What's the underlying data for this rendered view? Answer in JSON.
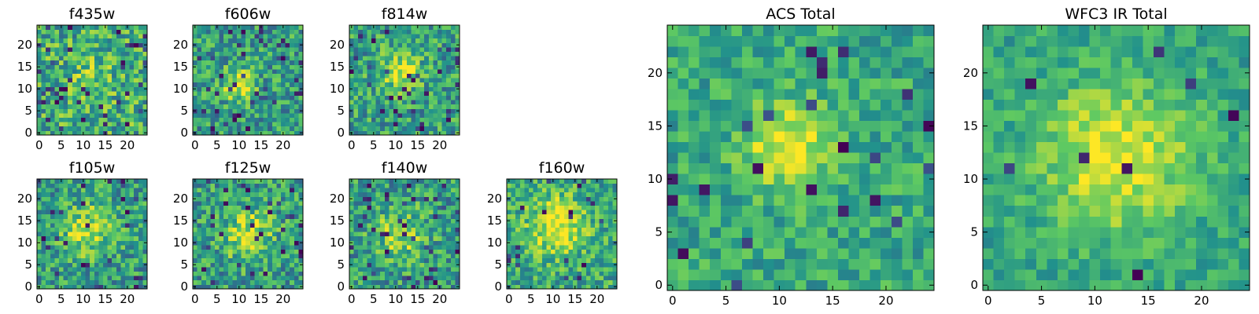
{
  "figure": {
    "colormap": "viridis",
    "colormap_stops": [
      "#440154",
      "#3b528b",
      "#21918c",
      "#5ec962",
      "#fde725"
    ],
    "background": "#ffffff"
  },
  "chart_data": [
    {
      "type": "heatmap",
      "title": "f435w",
      "grid_size": 25,
      "x_ticks": [
        "0",
        "5",
        "10",
        "15",
        "20"
      ],
      "y_ticks": [
        "0",
        "5",
        "10",
        "15",
        "20"
      ],
      "xlim": [
        0,
        25
      ],
      "ylim": [
        0,
        25
      ],
      "seed": 11,
      "noise": 0.55,
      "peak": 0.12,
      "center": [
        12,
        12
      ],
      "sigma": 4.0,
      "base": 0.62,
      "dark_fraction": 0.07
    },
    {
      "type": "heatmap",
      "title": "f606w",
      "grid_size": 25,
      "x_ticks": [
        "0",
        "5",
        "10",
        "15",
        "20"
      ],
      "y_ticks": [
        "0",
        "5",
        "10",
        "15",
        "20"
      ],
      "xlim": [
        0,
        25
      ],
      "ylim": [
        0,
        25
      ],
      "seed": 23,
      "noise": 0.5,
      "peak": 0.45,
      "center": [
        10,
        11
      ],
      "sigma": 2.5,
      "base": 0.55,
      "dark_fraction": 0.06
    },
    {
      "type": "heatmap",
      "title": "f814w",
      "grid_size": 25,
      "x_ticks": [
        "0",
        "5",
        "10",
        "15",
        "20"
      ],
      "y_ticks": [
        "0",
        "5",
        "10",
        "15",
        "20"
      ],
      "xlim": [
        0,
        25
      ],
      "ylim": [
        0,
        25
      ],
      "seed": 37,
      "noise": 0.5,
      "peak": 0.4,
      "center": [
        11,
        14
      ],
      "sigma": 3.0,
      "base": 0.57,
      "dark_fraction": 0.05
    },
    {
      "type": "heatmap",
      "title": "f105w",
      "grid_size": 25,
      "x_ticks": [
        "0",
        "5",
        "10",
        "15",
        "20"
      ],
      "y_ticks": [
        "0",
        "5",
        "10",
        "15",
        "20"
      ],
      "xlim": [
        0,
        25
      ],
      "ylim": [
        0,
        25
      ],
      "seed": 41,
      "noise": 0.5,
      "peak": 0.35,
      "center": [
        11,
        13
      ],
      "sigma": 4.0,
      "base": 0.55,
      "dark_fraction": 0.04
    },
    {
      "type": "heatmap",
      "title": "f125w",
      "grid_size": 25,
      "x_ticks": [
        "0",
        "5",
        "10",
        "15",
        "20"
      ],
      "y_ticks": [
        "0",
        "5",
        "10",
        "15",
        "20"
      ],
      "xlim": [
        0,
        25
      ],
      "ylim": [
        0,
        25
      ],
      "seed": 53,
      "noise": 0.5,
      "peak": 0.35,
      "center": [
        12,
        12
      ],
      "sigma": 4.0,
      "base": 0.55,
      "dark_fraction": 0.05
    },
    {
      "type": "heatmap",
      "title": "f140w",
      "grid_size": 25,
      "x_ticks": [
        "0",
        "5",
        "10",
        "15",
        "20"
      ],
      "y_ticks": [
        "0",
        "5",
        "10",
        "15",
        "20"
      ],
      "xlim": [
        0,
        25
      ],
      "ylim": [
        0,
        25
      ],
      "seed": 67,
      "noise": 0.5,
      "peak": 0.3,
      "center": [
        11,
        12
      ],
      "sigma": 4.0,
      "base": 0.55,
      "dark_fraction": 0.06
    },
    {
      "type": "heatmap",
      "title": "f160w",
      "grid_size": 25,
      "x_ticks": [
        "0",
        "5",
        "10",
        "15",
        "20"
      ],
      "y_ticks": [
        "0",
        "5",
        "10",
        "15",
        "20"
      ],
      "xlim": [
        0,
        25
      ],
      "ylim": [
        0,
        25
      ],
      "seed": 79,
      "noise": 0.45,
      "peak": 0.4,
      "center": [
        11,
        14
      ],
      "sigma": 4.5,
      "base": 0.6,
      "dark_fraction": 0.03
    },
    {
      "type": "heatmap",
      "title": "ACS Total",
      "grid_size": 25,
      "x_ticks": [
        "0",
        "5",
        "10",
        "15",
        "20"
      ],
      "y_ticks": [
        "0",
        "5",
        "10",
        "15",
        "20"
      ],
      "xlim": [
        0,
        25
      ],
      "ylim": [
        0,
        25
      ],
      "seed": 97,
      "noise": 0.35,
      "peak": 0.4,
      "center": [
        11,
        13
      ],
      "sigma": 3.0,
      "base": 0.6,
      "dark_fraction": 0.04
    },
    {
      "type": "heatmap",
      "title": "WFC3 IR Total",
      "grid_size": 25,
      "x_ticks": [
        "0",
        "5",
        "10",
        "15",
        "20"
      ],
      "y_ticks": [
        "0",
        "5",
        "10",
        "15",
        "20"
      ],
      "xlim": [
        0,
        25
      ],
      "ylim": [
        0,
        25
      ],
      "seed": 113,
      "noise": 0.28,
      "peak": 0.4,
      "center": [
        12,
        12
      ],
      "sigma": 5.0,
      "base": 0.58,
      "dark_fraction": 0.02
    }
  ]
}
